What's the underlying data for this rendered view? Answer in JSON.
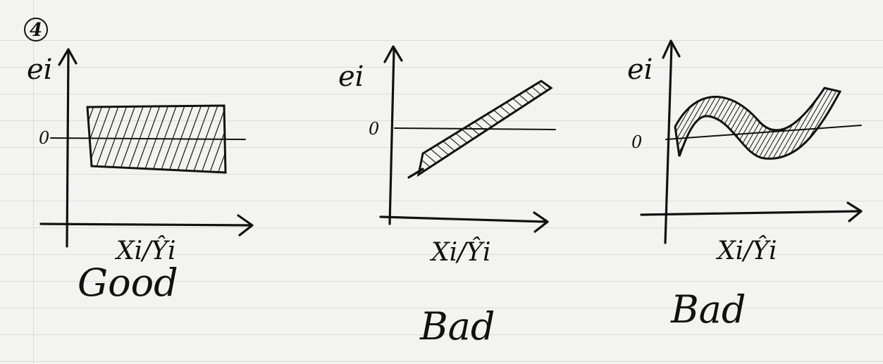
{
  "problem_number": "4",
  "panels": [
    {
      "id": "good",
      "y_label": "ei",
      "zero_label": "0",
      "x_label": "Xi/Ŷi",
      "verdict": "Good",
      "pattern": "constant-band"
    },
    {
      "id": "bad-linear",
      "y_label": "ei",
      "zero_label": "0",
      "x_label": "Xi/Ŷi",
      "verdict": "Bad",
      "pattern": "linear-trend-band"
    },
    {
      "id": "bad-curved",
      "y_label": "ei",
      "zero_label": "0",
      "x_label": "Xi/Ŷi",
      "verdict": "Bad",
      "pattern": "curved-band"
    }
  ],
  "colors": {
    "ink": "#111111",
    "paper": "#f3f3f1",
    "rule": "#dcdcdc"
  }
}
